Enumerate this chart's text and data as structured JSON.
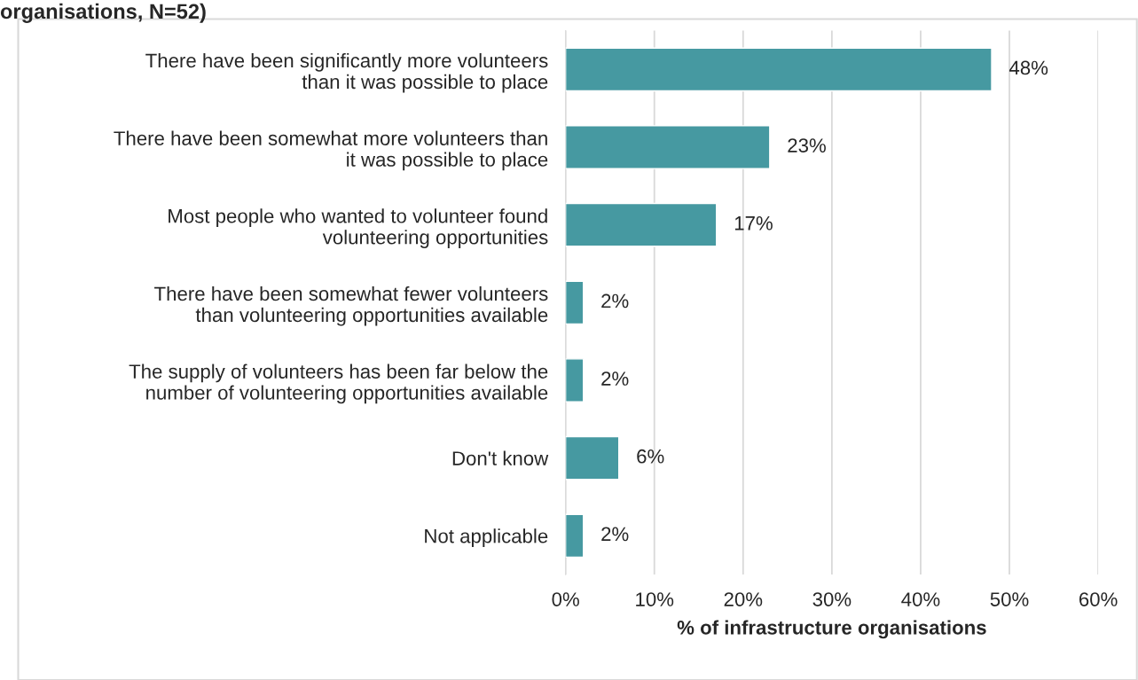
{
  "chart_data": {
    "type": "bar",
    "orientation": "horizontal",
    "title": "organisations, N=52)",
    "xlabel": "% of infrastructure organisations",
    "categories": [
      "There have been significantly more volunteers\nthan it was possible to place",
      "There have been somewhat more volunteers than\nit was possible to place",
      "Most people who wanted to volunteer found\nvolunteering opportunities",
      "There have been somewhat fewer volunteers\nthan volunteering opportunities available",
      "The supply of volunteers has been far below the\nnumber of volunteering opportunities available",
      "Don't know",
      "Not applicable"
    ],
    "values": [
      48,
      23,
      17,
      2,
      2,
      6,
      2
    ],
    "value_labels": [
      "48%",
      "23%",
      "17%",
      "2%",
      "2%",
      "6%",
      "2%"
    ],
    "color": "#4699a1",
    "xlim": [
      0,
      60
    ],
    "xticks": [
      {
        "value": 0,
        "label": "0%"
      },
      {
        "value": 10,
        "label": "10%"
      },
      {
        "value": 20,
        "label": "20%"
      },
      {
        "value": 30,
        "label": "30%"
      },
      {
        "value": 40,
        "label": "40%"
      },
      {
        "value": 50,
        "label": "50%"
      },
      {
        "value": 60,
        "label": "60%"
      }
    ],
    "grid": "x",
    "legend": false
  }
}
